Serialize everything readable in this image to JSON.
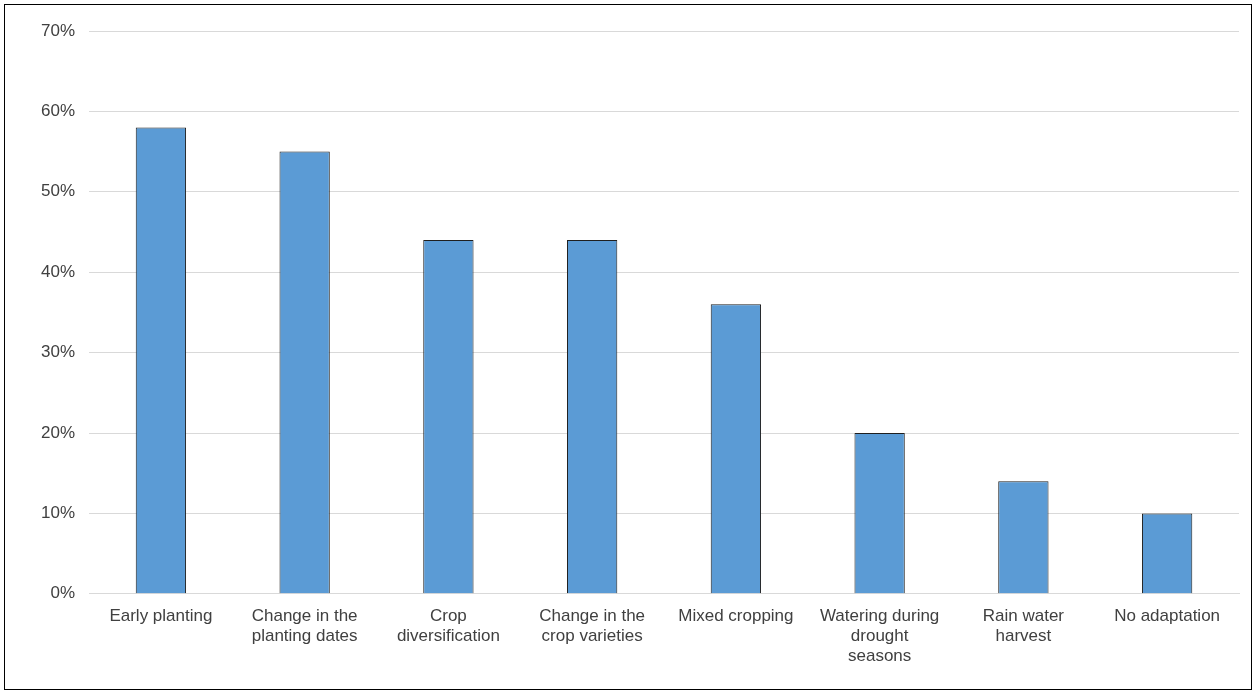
{
  "chart_data": {
    "type": "bar",
    "categories": [
      "Early planting",
      "Change in the planting dates",
      "Crop diversification",
      "Change in the crop varieties",
      "Mixed cropping",
      "Watering during drought seasons",
      "Rain water harvest",
      "No adaptation"
    ],
    "values": [
      58,
      55,
      44,
      44,
      36,
      20,
      14,
      10
    ],
    "color": "#5b9bd5",
    "ylim": [
      0,
      70
    ],
    "yticks": [
      {
        "value": 0,
        "label": "0%"
      },
      {
        "value": 10,
        "label": "10%"
      },
      {
        "value": 20,
        "label": "20%"
      },
      {
        "value": 30,
        "label": "30%"
      },
      {
        "value": 40,
        "label": "40%"
      },
      {
        "value": 50,
        "label": "50%"
      },
      {
        "value": 60,
        "label": "60%"
      },
      {
        "value": 70,
        "label": "70%"
      }
    ],
    "grid": "y",
    "legend": false
  }
}
